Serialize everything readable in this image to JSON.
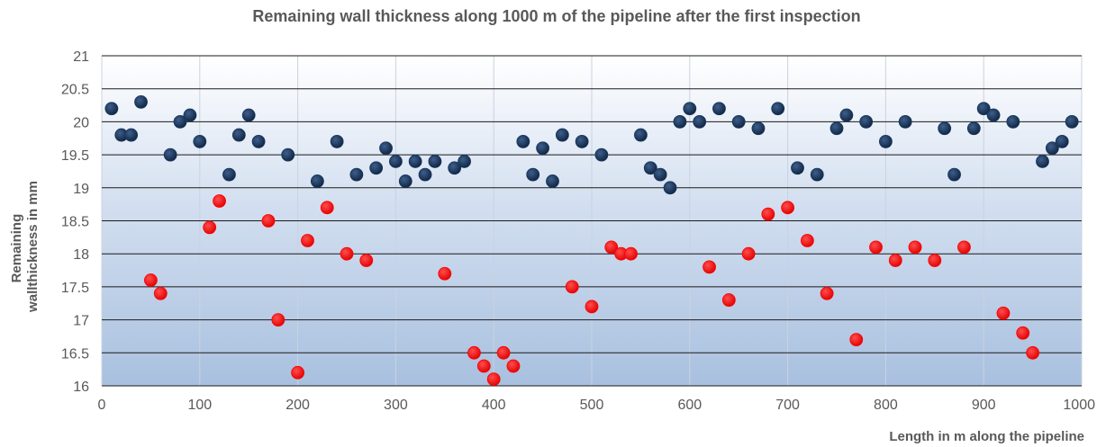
{
  "chart_data": {
    "type": "scatter",
    "title": "Remaining wall thickness along 1000 m of the pipeline after the first inspection",
    "xlabel": "Length in m along the pipeline",
    "ylabel_lines": [
      "Remaining",
      "wallthickness in mm"
    ],
    "xlim": [
      0,
      1000
    ],
    "ylim": [
      16,
      21
    ],
    "x_ticks": [
      0,
      100,
      200,
      300,
      400,
      500,
      600,
      700,
      800,
      900,
      1000
    ],
    "y_ticks": [
      16,
      16.5,
      17,
      17.5,
      18,
      18.5,
      19,
      19.5,
      20,
      20.5,
      21
    ],
    "y_gridlines": true,
    "x_gridlines": true,
    "series": [
      {
        "color": "#17365d",
        "x": [
          10,
          20,
          30,
          40,
          70,
          80,
          90,
          100,
          130,
          140,
          150,
          160,
          190,
          220,
          240,
          260,
          280,
          290,
          300,
          310,
          320,
          330,
          340,
          360,
          370,
          430,
          440,
          450,
          460,
          470,
          490,
          510,
          550,
          560,
          570,
          580,
          590,
          600,
          610,
          630,
          650,
          670,
          690,
          710,
          730,
          750,
          760,
          780,
          800,
          820,
          860,
          870,
          890,
          900,
          910,
          930,
          960,
          970,
          980,
          990
        ],
        "y": [
          20.2,
          19.8,
          19.8,
          20.3,
          19.5,
          20.0,
          20.1,
          19.7,
          19.2,
          19.8,
          20.1,
          19.7,
          19.5,
          19.1,
          19.7,
          19.2,
          19.3,
          19.6,
          19.4,
          19.1,
          19.4,
          19.2,
          19.4,
          19.3,
          19.4,
          19.7,
          19.2,
          19.6,
          19.1,
          19.8,
          19.7,
          19.5,
          19.8,
          19.3,
          19.2,
          19.0,
          20.0,
          20.2,
          20.0,
          20.2,
          20.0,
          19.9,
          20.2,
          19.3,
          19.2,
          19.9,
          20.1,
          20.0,
          19.7,
          20.0,
          19.9,
          19.2,
          19.9,
          20.2,
          20.1,
          20.0,
          19.4,
          19.6,
          19.7,
          20.0
        ]
      },
      {
        "color": "#ff0000",
        "x": [
          50,
          60,
          110,
          120,
          170,
          180,
          200,
          210,
          230,
          250,
          270,
          350,
          380,
          390,
          400,
          410,
          420,
          480,
          500,
          520,
          530,
          540,
          620,
          640,
          660,
          680,
          700,
          720,
          740,
          770,
          790,
          810,
          830,
          850,
          880,
          920,
          940,
          950
        ],
        "y": [
          17.6,
          17.4,
          18.4,
          18.8,
          18.5,
          17.0,
          16.2,
          18.2,
          18.7,
          18.0,
          17.9,
          17.7,
          16.5,
          16.3,
          16.1,
          16.5,
          16.3,
          17.5,
          17.2,
          18.1,
          18.0,
          18.0,
          17.8,
          17.3,
          18.0,
          18.6,
          18.7,
          18.2,
          17.4,
          16.7,
          18.1,
          17.9,
          18.1,
          17.9,
          18.1,
          17.1,
          16.8,
          16.5
        ]
      }
    ]
  }
}
